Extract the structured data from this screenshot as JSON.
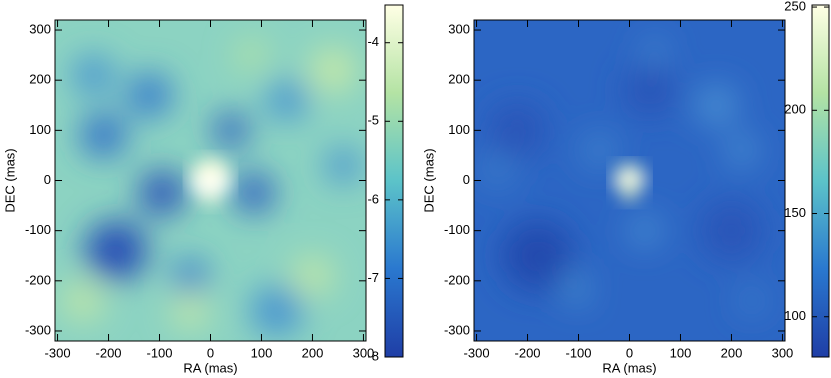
{
  "chart_data": [
    {
      "type": "image",
      "xlabel": "RA (mas)",
      "ylabel": "DEC (mas)",
      "xlim": [
        -305,
        305
      ],
      "ylim": [
        -320,
        320
      ],
      "xticks": [
        -300,
        -200,
        -100,
        0,
        100,
        200,
        300
      ],
      "yticks": [
        -300,
        -200,
        -100,
        0,
        100,
        200,
        300
      ],
      "colormap": [
        "#1f3ea6",
        "#2a78cf",
        "#5cc3c9",
        "#b4e3a4",
        "#ffffe5"
      ],
      "clim": [
        -8,
        -3.52
      ],
      "cticks": [
        -8,
        -7,
        -6,
        -5,
        -4
      ]
    },
    {
      "type": "image",
      "xlabel": "RA (mas)",
      "ylabel": "DEC (mas)",
      "xlim": [
        -305,
        305
      ],
      "ylim": [
        -320,
        320
      ],
      "xticks": [
        -300,
        -200,
        -100,
        0,
        100,
        200,
        300
      ],
      "yticks": [
        -300,
        -200,
        -100,
        0,
        100,
        200,
        300
      ],
      "colormap": [
        "#1f3ea6",
        "#2a78cf",
        "#5cc3c9",
        "#b4e3a4",
        "#ffffe5"
      ],
      "clim": [
        80.5,
        251
      ],
      "cticks": [
        100,
        150,
        200,
        250
      ]
    }
  ]
}
